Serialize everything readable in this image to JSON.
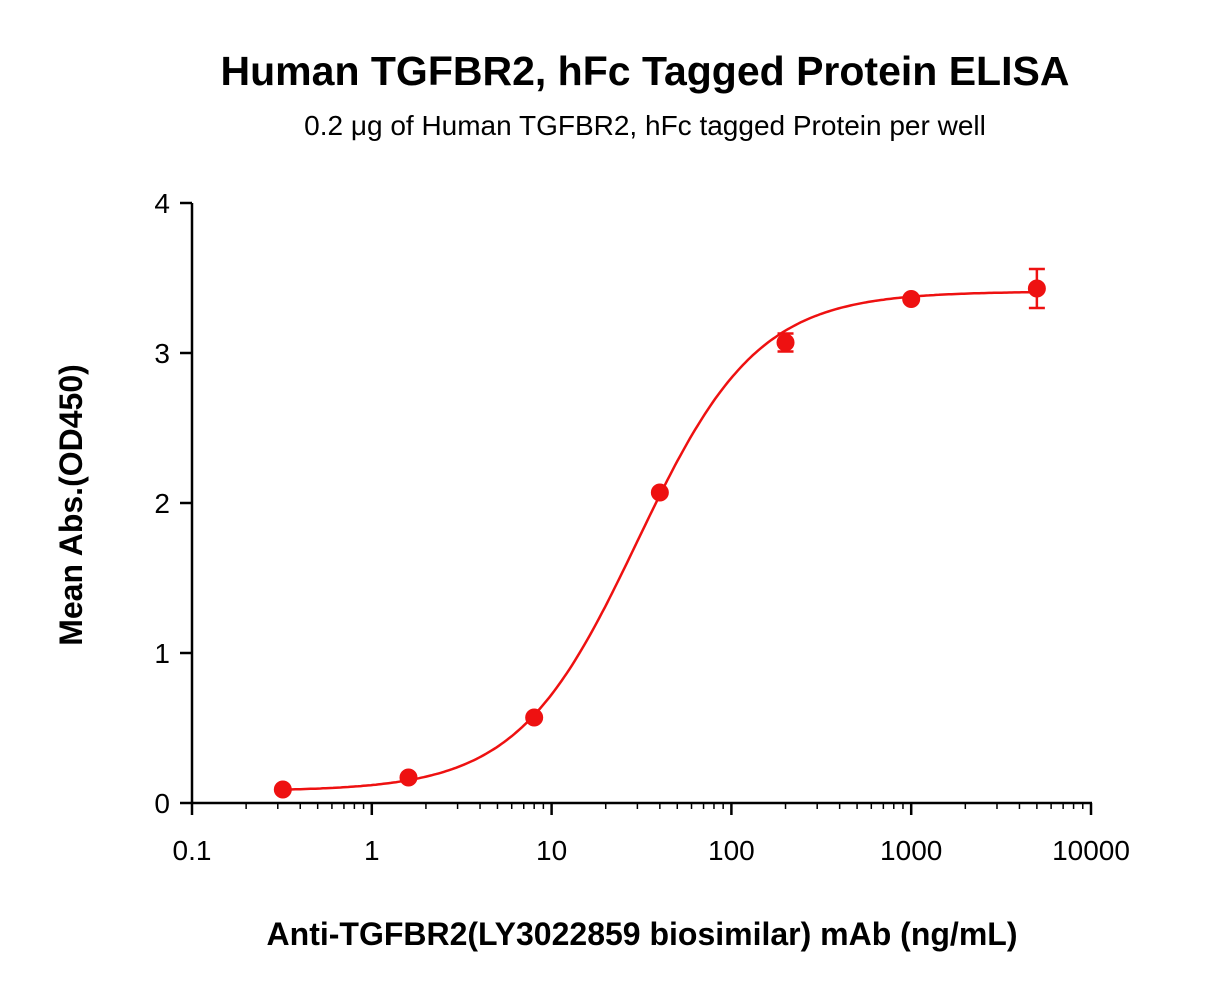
{
  "chart_data": {
    "type": "scatter",
    "title": "Human TGFBR2, hFc Tagged Protein ELISA",
    "subtitle": "0.2 μg of Human TGFBR2, hFc tagged Protein per well",
    "xlabel": "Anti-TGFBR2(LY3022859 biosimilar) mAb (ng/mL)",
    "ylabel": "Mean Abs.(OD450)",
    "xscale": "log",
    "xlim": [
      0.1,
      10000
    ],
    "ylim": [
      0,
      4
    ],
    "xticks": [
      "0.1",
      "1",
      "10",
      "100",
      "1000",
      "10000"
    ],
    "yticks": [
      "0",
      "1",
      "2",
      "3",
      "4"
    ],
    "grid": false,
    "color": "#ee1111",
    "series": [
      {
        "x": [
          0.32,
          1.6,
          8,
          40,
          200,
          1000,
          5000
        ],
        "y": [
          0.09,
          0.17,
          0.57,
          2.07,
          3.07,
          3.36,
          3.43
        ],
        "error": [
          0.01,
          0.01,
          0.02,
          0.02,
          0.06,
          0.02,
          0.13
        ]
      }
    ],
    "fit": {
      "model": "4PL",
      "bottom": 0.08,
      "top": 3.41,
      "ec50": 30,
      "hill": 1.3
    }
  }
}
